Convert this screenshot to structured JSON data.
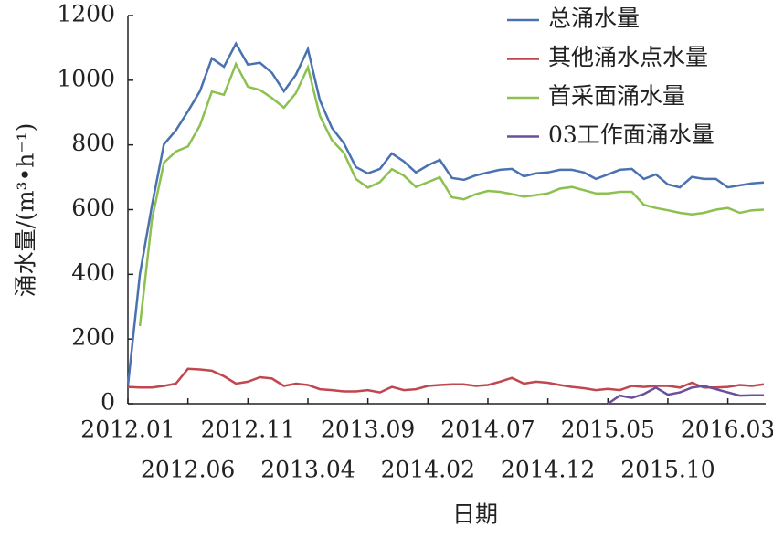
{
  "chart_data": {
    "type": "line",
    "xlabel": "日期",
    "ylabel": "涌水量/(m³•h⁻¹)",
    "categories": [
      "2012.01",
      null,
      null,
      null,
      null,
      "2012.06",
      null,
      null,
      null,
      null,
      "2012.11",
      null,
      null,
      null,
      null,
      "2013.04",
      null,
      null,
      null,
      null,
      "2013.09",
      null,
      null,
      null,
      null,
      "2014.02",
      null,
      null,
      null,
      null,
      "2014.07",
      null,
      null,
      null,
      null,
      "2014.12",
      null,
      null,
      null,
      null,
      "2015.05",
      null,
      null,
      null,
      null,
      "2015.10",
      null,
      null,
      null,
      null,
      "2016.03",
      null,
      null,
      null
    ],
    "series": [
      {
        "name": "总涌水量",
        "color": "#4a72b0",
        "values": [
          56,
          400,
          613,
          802,
          845,
          904,
          966,
          1068,
          1042,
          1113,
          1048,
          1054,
          1023,
          966,
          1017,
          1096,
          938,
          853,
          805,
          732,
          712,
          726,
          774,
          749,
          715,
          737,
          754,
          698,
          692,
          706,
          715,
          723,
          726,
          703,
          712,
          715,
          723,
          723,
          715,
          695,
          709,
          723,
          726,
          695,
          709,
          678,
          669,
          701,
          695,
          695,
          669,
          675,
          681,
          684
        ]
      },
      {
        "name": "其他涌水点水量",
        "color": "#c0474f",
        "values": [
          52,
          50,
          50,
          55,
          62,
          108,
          106,
          102,
          85,
          62,
          68,
          82,
          78,
          55,
          62,
          58,
          45,
          42,
          38,
          38,
          42,
          35,
          52,
          42,
          45,
          55,
          58,
          60,
          60,
          55,
          58,
          68,
          80,
          62,
          68,
          65,
          58,
          52,
          48,
          42,
          46,
          42,
          55,
          52,
          55,
          55,
          50,
          65,
          50,
          50,
          52,
          58,
          55,
          60
        ]
      },
      {
        "name": "首采面涌水量",
        "color": "#8cc04f",
        "values": [
          null,
          240,
          570,
          745,
          780,
          795,
          860,
          965,
          955,
          1050,
          980,
          970,
          945,
          915,
          960,
          1040,
          890,
          815,
          775,
          695,
          668,
          685,
          725,
          705,
          670,
          685,
          700,
          638,
          632,
          648,
          658,
          655,
          648,
          640,
          645,
          650,
          665,
          670,
          660,
          650,
          650,
          655,
          655,
          615,
          605,
          598,
          590,
          585,
          590,
          600,
          605,
          590,
          598,
          600
        ]
      },
      {
        "name": "03工作面涌水量",
        "color": "#6a4f9e",
        "values": [
          null,
          null,
          null,
          null,
          null,
          null,
          null,
          null,
          null,
          null,
          null,
          null,
          null,
          null,
          null,
          null,
          null,
          null,
          null,
          null,
          null,
          null,
          null,
          null,
          null,
          null,
          null,
          null,
          null,
          null,
          null,
          null,
          null,
          null,
          null,
          null,
          null,
          null,
          null,
          null,
          0,
          25,
          18,
          30,
          50,
          28,
          35,
          50,
          55,
          45,
          35,
          25,
          26,
          26
        ]
      }
    ],
    "ylim": [
      0,
      1200
    ],
    "yticks": [
      0,
      200,
      400,
      600,
      800,
      1000,
      1200
    ],
    "legend": "upper right"
  }
}
